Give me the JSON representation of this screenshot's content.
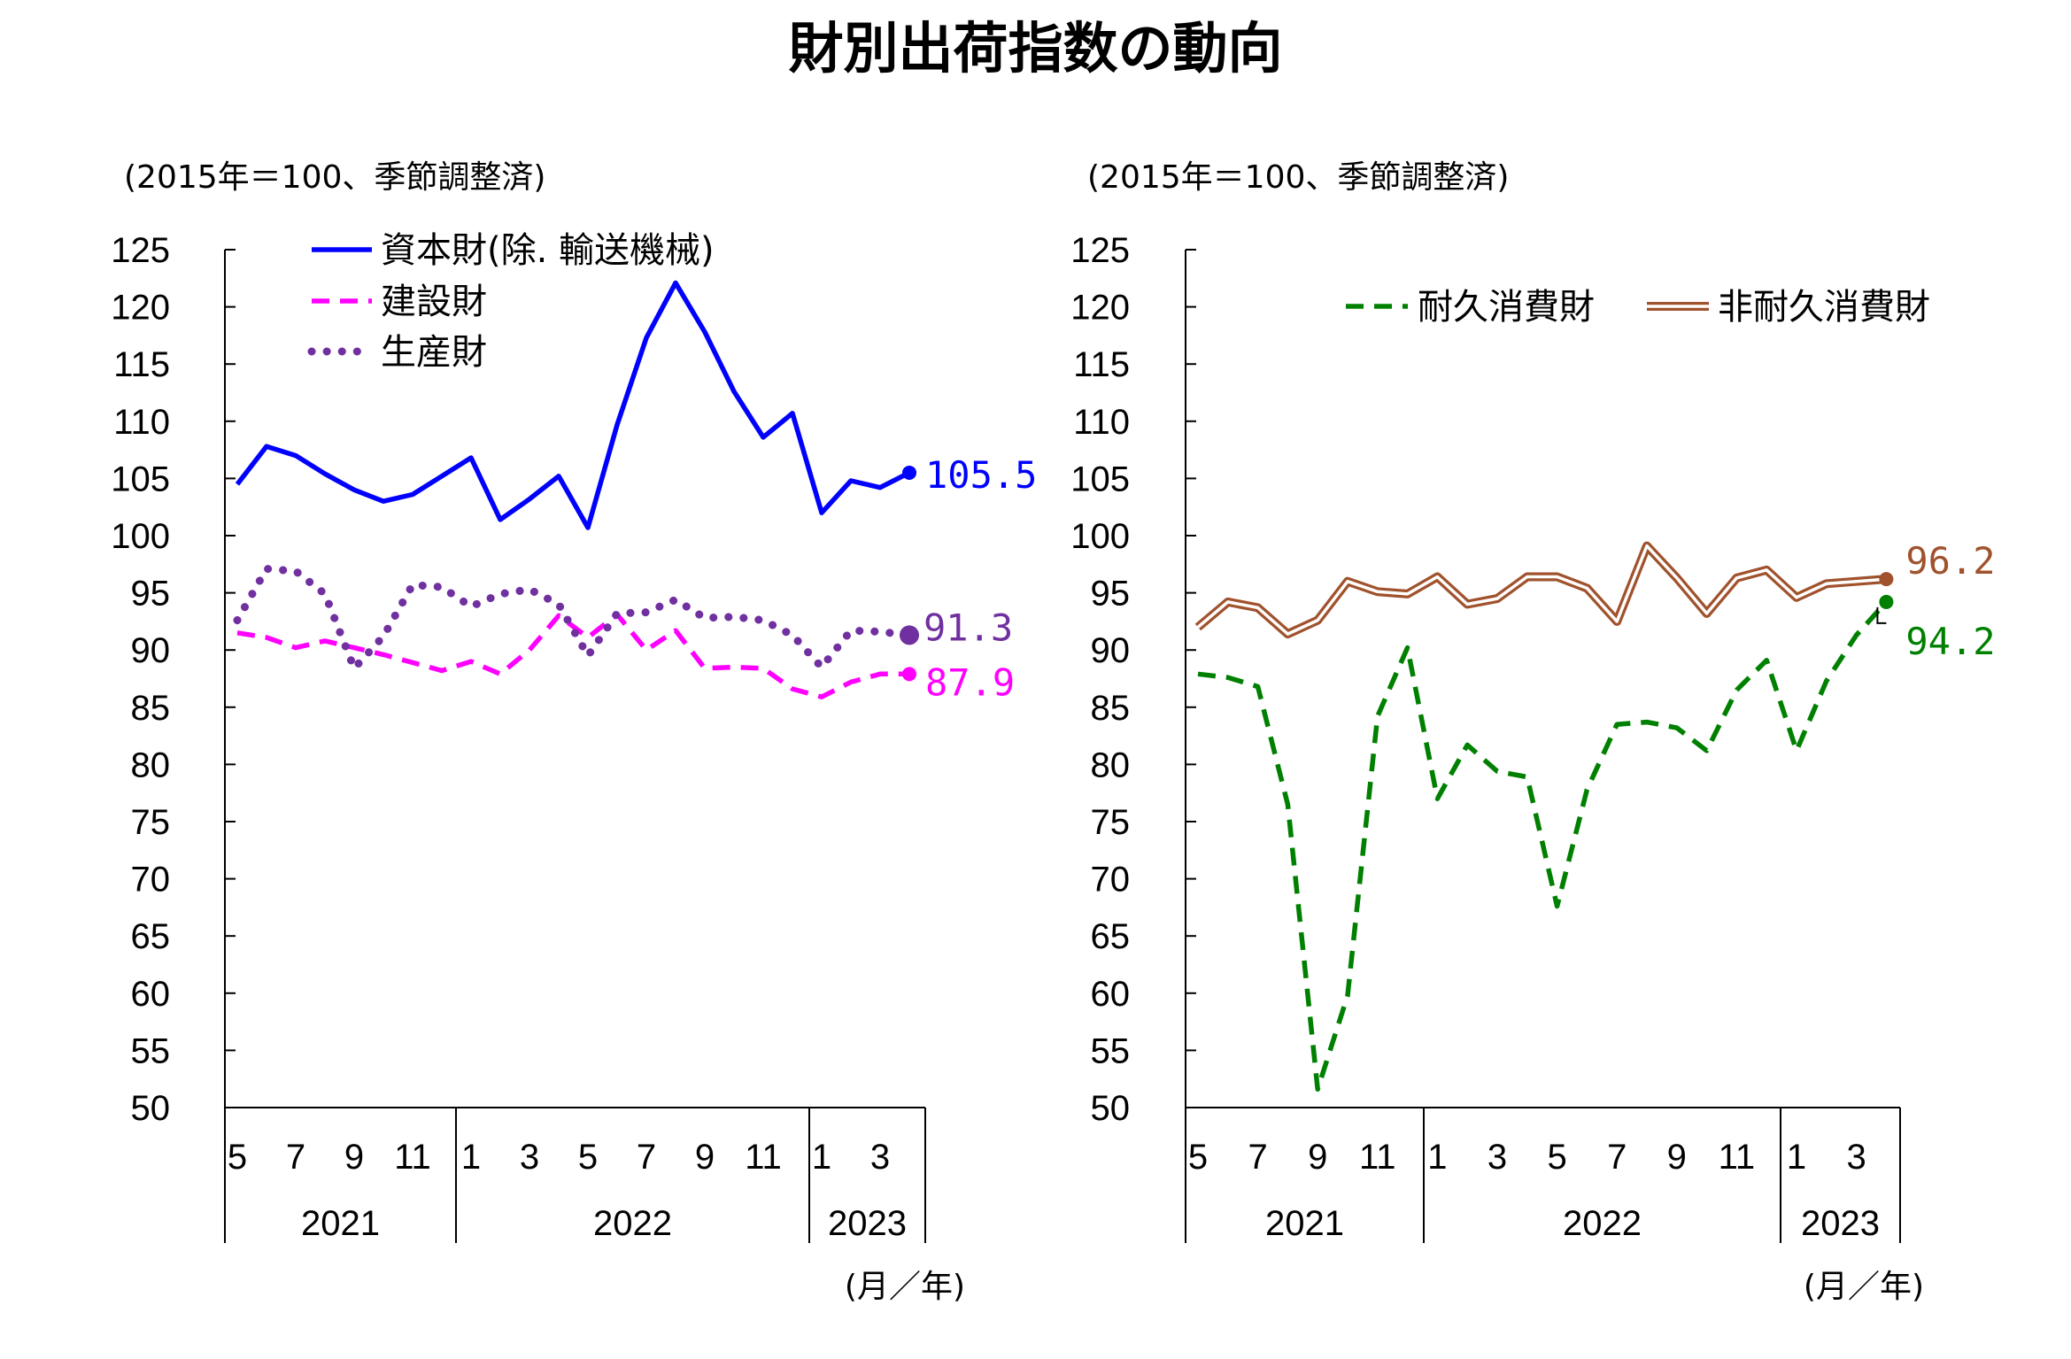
{
  "title": "財別出荷指数の動向",
  "chart_data": [
    {
      "type": "line",
      "subtitle": "(2015年＝100、季節調整済)",
      "unit_label": "(月／年)",
      "ylim": [
        50,
        125
      ],
      "yticks": [
        "125",
        "120",
        "115",
        "110",
        "105",
        "100",
        "95",
        "90",
        "85",
        "80",
        "75",
        "70",
        "65",
        "60",
        "55",
        "50"
      ],
      "x_tick_labels": [
        "5",
        "7",
        "9",
        "11",
        "1",
        "3",
        "5",
        "7",
        "9",
        "11",
        "1",
        "3"
      ],
      "year_labels": [
        "2021",
        "2022",
        "2023"
      ],
      "x_months": [
        "2021-05",
        "2021-06",
        "2021-07",
        "2021-08",
        "2021-09",
        "2021-10",
        "2021-11",
        "2021-12",
        "2022-01",
        "2022-02",
        "2022-03",
        "2022-04",
        "2022-05",
        "2022-06",
        "2022-07",
        "2022-08",
        "2022-09",
        "2022-10",
        "2022-11",
        "2022-12",
        "2023-01",
        "2023-02",
        "2023-03",
        "2023-04"
      ],
      "legend_position": "top",
      "series": [
        {
          "name": "資本財(除. 輸送機械)",
          "color": "#0000ff",
          "style": "solid",
          "values": [
            104.5,
            107.8,
            107.0,
            105.4,
            104.0,
            103.0,
            103.6,
            105.2,
            106.8,
            101.4,
            103.2,
            105.2,
            100.7,
            109.7,
            117.3,
            122.1,
            117.8,
            112.6,
            108.6,
            110.7,
            102.0,
            104.8,
            104.2,
            105.5
          ],
          "end_label": "105.5"
        },
        {
          "name": "建設財",
          "color": "#ff00ff",
          "style": "dashed",
          "values": [
            91.5,
            91.1,
            90.2,
            90.8,
            90.2,
            89.6,
            88.9,
            88.2,
            89.0,
            87.9,
            90.0,
            93.0,
            91.1,
            93.1,
            90.0,
            91.7,
            88.4,
            88.5,
            88.4,
            86.6,
            85.9,
            87.2,
            87.9,
            87.9
          ],
          "end_label": "87.9"
        },
        {
          "name": "生産財",
          "color": "#7030a0",
          "style": "dotted",
          "values": [
            92.6,
            97.1,
            96.9,
            94.9,
            88.4,
            91.2,
            95.7,
            95.5,
            93.8,
            94.9,
            95.3,
            94.0,
            89.5,
            93.2,
            93.3,
            94.4,
            92.8,
            92.9,
            92.6,
            91.3,
            88.5,
            91.7,
            91.6,
            91.3
          ],
          "end_label": "91.3"
        }
      ]
    },
    {
      "type": "line",
      "subtitle": "(2015年＝100、季節調整済)",
      "unit_label": "(月／年)",
      "ylim": [
        50,
        125
      ],
      "yticks": [
        "125",
        "120",
        "115",
        "110",
        "105",
        "100",
        "95",
        "90",
        "85",
        "80",
        "75",
        "70",
        "65",
        "60",
        "55",
        "50"
      ],
      "x_tick_labels": [
        "5",
        "7",
        "9",
        "11",
        "1",
        "3",
        "5",
        "7",
        "9",
        "11",
        "1",
        "3"
      ],
      "year_labels": [
        "2021",
        "2022",
        "2023"
      ],
      "x_months": [
        "2021-05",
        "2021-06",
        "2021-07",
        "2021-08",
        "2021-09",
        "2021-10",
        "2021-11",
        "2021-12",
        "2022-01",
        "2022-02",
        "2022-03",
        "2022-04",
        "2022-05",
        "2022-06",
        "2022-07",
        "2022-08",
        "2022-09",
        "2022-10",
        "2022-11",
        "2022-12",
        "2023-01",
        "2023-02",
        "2023-03",
        "2023-04"
      ],
      "legend_position": "top",
      "series": [
        {
          "name": "耐久消費財",
          "color": "#008000",
          "style": "dashed",
          "values": [
            87.9,
            87.6,
            86.8,
            76.5,
            51.6,
            59.8,
            84.2,
            90.2,
            77.0,
            81.7,
            79.4,
            78.9,
            67.6,
            77.8,
            83.5,
            83.7,
            83.2,
            81.2,
            86.5,
            89.1,
            81.2,
            87.3,
            91.3,
            94.2
          ],
          "end_label": "94.2"
        },
        {
          "name": "非耐久消費財",
          "color": "#a0522d",
          "style": "double",
          "values": [
            92.0,
            94.2,
            93.7,
            91.4,
            92.6,
            96.0,
            95.1,
            94.9,
            96.4,
            94.0,
            94.5,
            96.4,
            96.4,
            95.4,
            92.5,
            99.1,
            96.3,
            93.2,
            96.3,
            97.0,
            94.6,
            95.8,
            96.0,
            96.2
          ],
          "end_label": "96.2"
        }
      ]
    }
  ]
}
